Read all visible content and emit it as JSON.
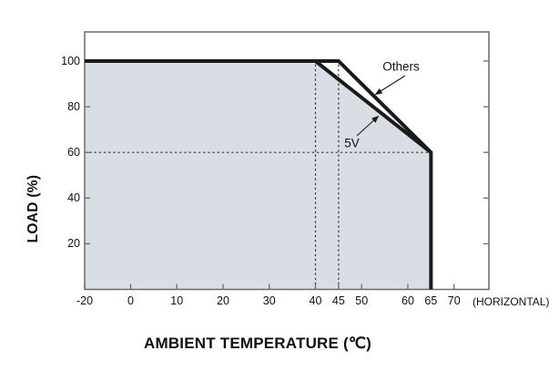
{
  "chart_data": {
    "type": "line",
    "title": "",
    "xlabel": "AMBIENT TEMPERATURE (℃)",
    "ylabel": "LOAD (%)",
    "x_axis_note": "(HORIZONTAL)",
    "x_ticks": [
      {
        "value": -20,
        "label": "-20"
      },
      {
        "value": 0,
        "label": "0"
      },
      {
        "value": 10,
        "label": "10"
      },
      {
        "value": 20,
        "label": "20"
      },
      {
        "value": 30,
        "label": "30"
      },
      {
        "value": 40,
        "label": "40"
      },
      {
        "value": 45,
        "label": "45"
      },
      {
        "value": 50,
        "label": "50"
      },
      {
        "value": 60,
        "label": "60"
      },
      {
        "value": 65,
        "label": "65"
      },
      {
        "value": 70,
        "label": "70"
      }
    ],
    "y_ticks": [
      {
        "value": 100,
        "label": "100"
      },
      {
        "value": 80,
        "label": "80"
      },
      {
        "value": 60,
        "label": "60"
      },
      {
        "value": 40,
        "label": "40"
      },
      {
        "value": 20,
        "label": "20"
      }
    ],
    "xlim": [
      -20,
      77
    ],
    "ylim": [
      0,
      113
    ],
    "series": [
      {
        "name": "Others",
        "points": [
          [
            -20,
            100
          ],
          [
            45,
            100
          ],
          [
            65,
            60
          ]
        ]
      },
      {
        "name": "5V",
        "points": [
          [
            -20,
            100
          ],
          [
            40,
            100
          ],
          [
            65,
            60
          ],
          [
            65,
            0
          ]
        ]
      }
    ],
    "shaded_series": "5V",
    "guides": {
      "vertical_dashed_temps": [
        40,
        45
      ],
      "horizontal_dashed_loads": [
        60
      ]
    },
    "annotations": [
      {
        "text": "Others"
      },
      {
        "text": "5V"
      }
    ],
    "colors": {
      "fill": "#d9dee4",
      "line": "#1a1a1a",
      "border": "#6b6b6b",
      "dash": "#3c3c3c",
      "text": "#111111"
    }
  }
}
